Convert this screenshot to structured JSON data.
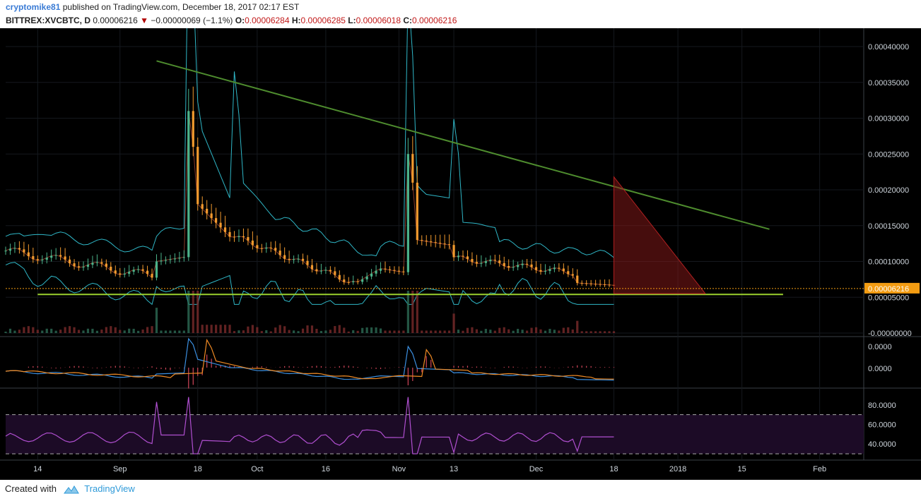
{
  "header": {
    "user": "cryptomike81",
    "published": "published on TradingView.com, December 18, 2017 02:17 EST",
    "symbol": "BITTREX:XVCBTC, D",
    "last": "0.00006216",
    "change": "−0.00000069 (−1.1%)",
    "open_label": "O:",
    "open": "0.00006284",
    "high_label": "H:",
    "high": "0.00006285",
    "low_label": "L:",
    "low": "0.00006018",
    "close_label": "C:",
    "close": "0.00006216"
  },
  "footer": {
    "created_with": "Created with",
    "brand": "TradingView"
  },
  "colors": {
    "background": "#000000",
    "up_candle": "#4bb38a",
    "down_candle": "#f29a2e",
    "trendline": "#4e8c2e",
    "support_line": "#9bd12e",
    "triangle": "#8b1a1a",
    "price_label": "#f39c12",
    "macd": "#3b8fe0",
    "signal": "#f08a24",
    "hist": "#d2465a",
    "rsi": "#b04fd0",
    "bollinger": "#2fb7c7"
  },
  "chart_data": {
    "type": "candlestick",
    "symbol": "BITTREX:XVCBTC",
    "interval": "D",
    "price_axis": {
      "ticks": [
        "0.00040000",
        "0.00035000",
        "0.00030000",
        "0.00025000",
        "0.00020000",
        "0.00015000",
        "0.00010000",
        "0.00005000",
        "-0.00000000"
      ],
      "ylim": [
        0,
        0.0004
      ],
      "last_price_label": "0.00006216"
    },
    "time_axis": {
      "ticks": [
        "14",
        "Sep",
        "18",
        "Oct",
        "16",
        "Nov",
        "13",
        "Dec",
        "18",
        "2018",
        "15",
        "Feb"
      ],
      "range": [
        "2017-08-07",
        "2018-02-06"
      ]
    },
    "key_points": [
      {
        "date": "2017-09-09",
        "high": 0.00038,
        "close": 0.00031
      },
      {
        "date": "2017-11-03",
        "high": 0.00029,
        "close": 0.00025
      },
      {
        "date": "2017-12-18",
        "close": 6.216e-05
      }
    ],
    "annotations": {
      "trendline": [
        {
          "date": "2017-09-09",
          "price": 0.00038
        },
        {
          "date": "2018-01-21",
          "price": 0.000145
        }
      ],
      "support": {
        "price": 5.4e-05,
        "from": "2017-08-14",
        "to": "2018-01-24"
      },
      "triangle": [
        {
          "date": "2017-12-18",
          "price": 0.000218
        },
        {
          "date": "2017-12-18",
          "price": 5.5e-05
        },
        {
          "date": "2018-01-07",
          "price": 5.5e-05
        }
      ]
    },
    "macd_axis": {
      "ticks": [
        "0.0000",
        "0.0000"
      ]
    },
    "rsi": {
      "ticks": [
        "80.0000",
        "60.0000",
        "40.0000"
      ],
      "ylim": [
        25,
        95
      ],
      "bands": [
        70,
        30
      ]
    }
  }
}
